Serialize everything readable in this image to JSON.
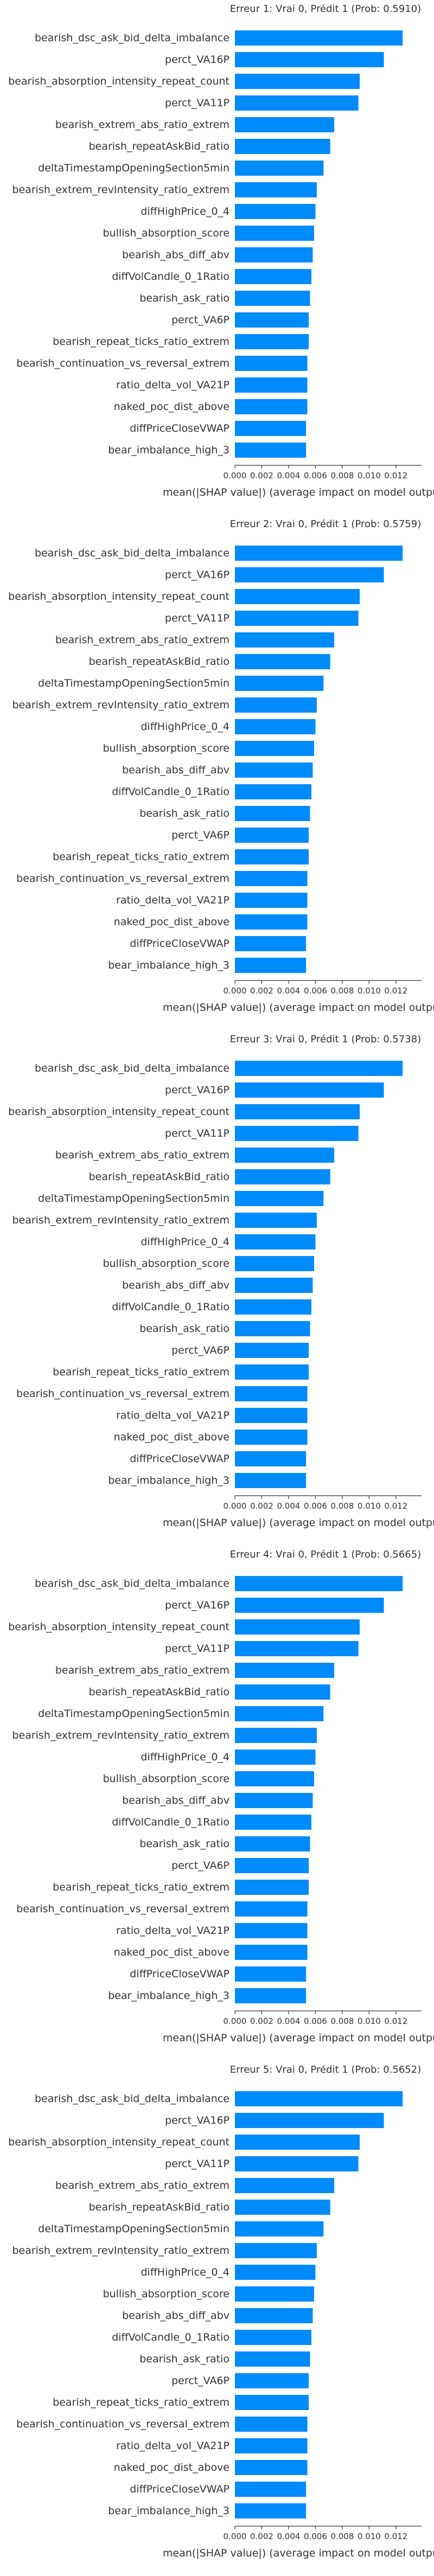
{
  "colors": {
    "bar": "#008BFB",
    "axis": "#333333",
    "text": "#333333"
  },
  "chart_data": [
    {
      "type": "bar",
      "orientation": "horizontal",
      "title": "Erreur 1: Vrai 0, Prédit 1 (Prob: 0.5910)",
      "xlabel": "mean(|SHAP value|) (average impact on model output m",
      "xlim": [
        0,
        0.0135
      ],
      "xticks": [
        "0.000",
        "0.002",
        "0.004",
        "0.006",
        "0.008",
        "0.010",
        "0.012"
      ],
      "categories": [
        "bearish_dsc_ask_bid_delta_imbalance",
        "perct_VA16P",
        "bearish_absorption_intensity_repeat_count",
        "perct_VA11P",
        "bearish_extrem_abs_ratio_extrem",
        "bearish_repeatAskBid_ratio",
        "deltaTimestampOpeningSection5min",
        "bearish_extrem_revIntensity_ratio_extrem",
        "diffHighPrice_0_4",
        "bullish_absorption_score",
        "bearish_abs_diff_abv",
        "diffVolCandle_0_1Ratio",
        "bearish_ask_ratio",
        "perct_VA6P",
        "bearish_repeat_ticks_ratio_extrem",
        "bearish_continuation_vs_reversal_extrem",
        "ratio_delta_vol_VA21P",
        "naked_poc_dist_above",
        "diffPriceCloseVWAP",
        "bear_imbalance_high_3"
      ],
      "values": [
        0.0125,
        0.0111,
        0.0093,
        0.0092,
        0.0074,
        0.0071,
        0.0066,
        0.0061,
        0.006,
        0.0059,
        0.0058,
        0.0057,
        0.0056,
        0.0055,
        0.0055,
        0.0054,
        0.0054,
        0.0054,
        0.0053,
        0.0053
      ]
    },
    {
      "type": "bar",
      "orientation": "horizontal",
      "title": "Erreur 2: Vrai 0, Prédit 1 (Prob: 0.5759)",
      "xlabel": "mean(|SHAP value|) (average impact on model output m",
      "xlim": [
        0,
        0.0135
      ],
      "xticks": [
        "0.000",
        "0.002",
        "0.004",
        "0.006",
        "0.008",
        "0.010",
        "0.012"
      ],
      "categories": [
        "bearish_dsc_ask_bid_delta_imbalance",
        "perct_VA16P",
        "bearish_absorption_intensity_repeat_count",
        "perct_VA11P",
        "bearish_extrem_abs_ratio_extrem",
        "bearish_repeatAskBid_ratio",
        "deltaTimestampOpeningSection5min",
        "bearish_extrem_revIntensity_ratio_extrem",
        "diffHighPrice_0_4",
        "bullish_absorption_score",
        "bearish_abs_diff_abv",
        "diffVolCandle_0_1Ratio",
        "bearish_ask_ratio",
        "perct_VA6P",
        "bearish_repeat_ticks_ratio_extrem",
        "bearish_continuation_vs_reversal_extrem",
        "ratio_delta_vol_VA21P",
        "naked_poc_dist_above",
        "diffPriceCloseVWAP",
        "bear_imbalance_high_3"
      ],
      "values": [
        0.0125,
        0.0111,
        0.0093,
        0.0092,
        0.0074,
        0.0071,
        0.0066,
        0.0061,
        0.006,
        0.0059,
        0.0058,
        0.0057,
        0.0056,
        0.0055,
        0.0055,
        0.0054,
        0.0054,
        0.0054,
        0.0053,
        0.0053
      ]
    },
    {
      "type": "bar",
      "orientation": "horizontal",
      "title": "Erreur 3: Vrai 0, Prédit 1 (Prob: 0.5738)",
      "xlabel": "mean(|SHAP value|) (average impact on model output m",
      "xlim": [
        0,
        0.0135
      ],
      "xticks": [
        "0.000",
        "0.002",
        "0.004",
        "0.006",
        "0.008",
        "0.010",
        "0.012"
      ],
      "categories": [
        "bearish_dsc_ask_bid_delta_imbalance",
        "perct_VA16P",
        "bearish_absorption_intensity_repeat_count",
        "perct_VA11P",
        "bearish_extrem_abs_ratio_extrem",
        "bearish_repeatAskBid_ratio",
        "deltaTimestampOpeningSection5min",
        "bearish_extrem_revIntensity_ratio_extrem",
        "diffHighPrice_0_4",
        "bullish_absorption_score",
        "bearish_abs_diff_abv",
        "diffVolCandle_0_1Ratio",
        "bearish_ask_ratio",
        "perct_VA6P",
        "bearish_repeat_ticks_ratio_extrem",
        "bearish_continuation_vs_reversal_extrem",
        "ratio_delta_vol_VA21P",
        "naked_poc_dist_above",
        "diffPriceCloseVWAP",
        "bear_imbalance_high_3"
      ],
      "values": [
        0.0125,
        0.0111,
        0.0093,
        0.0092,
        0.0074,
        0.0071,
        0.0066,
        0.0061,
        0.006,
        0.0059,
        0.0058,
        0.0057,
        0.0056,
        0.0055,
        0.0055,
        0.0054,
        0.0054,
        0.0054,
        0.0053,
        0.0053
      ]
    },
    {
      "type": "bar",
      "orientation": "horizontal",
      "title": "Erreur 4: Vrai 0, Prédit 1 (Prob: 0.5665)",
      "xlabel": "mean(|SHAP value|) (average impact on model output m",
      "xlim": [
        0,
        0.0135
      ],
      "xticks": [
        "0.000",
        "0.002",
        "0.004",
        "0.006",
        "0.008",
        "0.010",
        "0.012"
      ],
      "categories": [
        "bearish_dsc_ask_bid_delta_imbalance",
        "perct_VA16P",
        "bearish_absorption_intensity_repeat_count",
        "perct_VA11P",
        "bearish_extrem_abs_ratio_extrem",
        "bearish_repeatAskBid_ratio",
        "deltaTimestampOpeningSection5min",
        "bearish_extrem_revIntensity_ratio_extrem",
        "diffHighPrice_0_4",
        "bullish_absorption_score",
        "bearish_abs_diff_abv",
        "diffVolCandle_0_1Ratio",
        "bearish_ask_ratio",
        "perct_VA6P",
        "bearish_repeat_ticks_ratio_extrem",
        "bearish_continuation_vs_reversal_extrem",
        "ratio_delta_vol_VA21P",
        "naked_poc_dist_above",
        "diffPriceCloseVWAP",
        "bear_imbalance_high_3"
      ],
      "values": [
        0.0125,
        0.0111,
        0.0093,
        0.0092,
        0.0074,
        0.0071,
        0.0066,
        0.0061,
        0.006,
        0.0059,
        0.0058,
        0.0057,
        0.0056,
        0.0055,
        0.0055,
        0.0054,
        0.0054,
        0.0054,
        0.0053,
        0.0053
      ]
    },
    {
      "type": "bar",
      "orientation": "horizontal",
      "title": "Erreur 5: Vrai 0, Prédit 1 (Prob: 0.5652)",
      "xlabel": "mean(|SHAP value|) (average impact on model output m",
      "xlim": [
        0,
        0.0135
      ],
      "xticks": [
        "0.000",
        "0.002",
        "0.004",
        "0.006",
        "0.008",
        "0.010",
        "0.012"
      ],
      "categories": [
        "bearish_dsc_ask_bid_delta_imbalance",
        "perct_VA16P",
        "bearish_absorption_intensity_repeat_count",
        "perct_VA11P",
        "bearish_extrem_abs_ratio_extrem",
        "bearish_repeatAskBid_ratio",
        "deltaTimestampOpeningSection5min",
        "bearish_extrem_revIntensity_ratio_extrem",
        "diffHighPrice_0_4",
        "bullish_absorption_score",
        "bearish_abs_diff_abv",
        "diffVolCandle_0_1Ratio",
        "bearish_ask_ratio",
        "perct_VA6P",
        "bearish_repeat_ticks_ratio_extrem",
        "bearish_continuation_vs_reversal_extrem",
        "ratio_delta_vol_VA21P",
        "naked_poc_dist_above",
        "diffPriceCloseVWAP",
        "bear_imbalance_high_3"
      ],
      "values": [
        0.0125,
        0.0111,
        0.0093,
        0.0092,
        0.0074,
        0.0071,
        0.0066,
        0.0061,
        0.006,
        0.0059,
        0.0058,
        0.0057,
        0.0056,
        0.0055,
        0.0055,
        0.0054,
        0.0054,
        0.0054,
        0.0053,
        0.0053
      ]
    }
  ]
}
